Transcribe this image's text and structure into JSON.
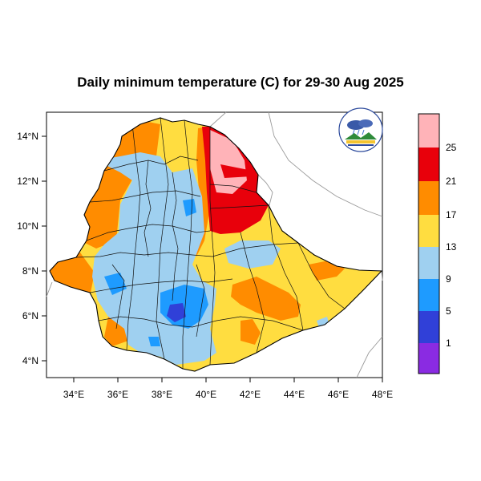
{
  "title": "Daily minimum temperature (C) for 29-30 Aug 2025",
  "x_axis": {
    "ticks": [
      "34°E",
      "36°E",
      "38°E",
      "40°E",
      "42°E",
      "44°E",
      "46°E",
      "48°E"
    ]
  },
  "y_axis": {
    "ticks": [
      "14°N",
      "12°N",
      "10°N",
      "8°N",
      "6°N",
      "4°N"
    ]
  },
  "legend": {
    "labels": [
      "25",
      "21",
      "17",
      "13",
      "9",
      "5",
      "1"
    ],
    "colors": [
      "#ffb3b8",
      "#e8000b",
      "#ff8c00",
      "#ffdd40",
      "#9fd0f0",
      "#1e9bff",
      "#3040d8",
      "#8a2be2"
    ]
  },
  "logo": {
    "icon": "meteorology-institute-logo"
  },
  "colors": {
    "background": "#ffffff",
    "ocean": "#ffffff",
    "neighbor_border": "#999999",
    "admin_border": "#000000"
  }
}
